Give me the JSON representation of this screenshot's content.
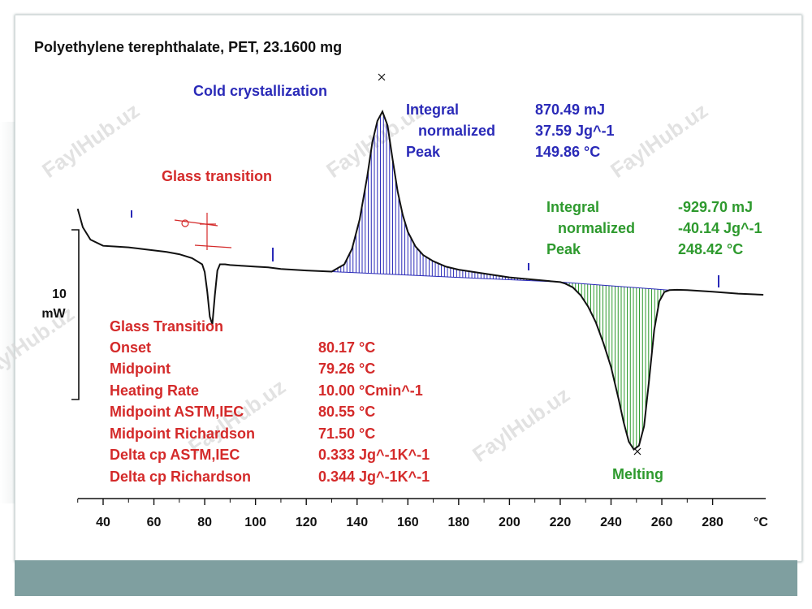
{
  "title": "Polyethylene terephthalate, PET, 23.1600 mg",
  "scale_bar": {
    "value": "10",
    "unit": "mW"
  },
  "x_axis": {
    "unit": "°C",
    "ticks": [
      "40",
      "60",
      "80",
      "100",
      "120",
      "140",
      "160",
      "180",
      "200",
      "220",
      "240",
      "260",
      "280"
    ]
  },
  "watermark": "FaylHub.uz",
  "colors": {
    "glass": "#d42a2a",
    "cold": "#2a2ab8",
    "melt": "#2e9a2e",
    "curve": "#111111"
  },
  "glass_transition_label": "Glass transition",
  "glass_table": {
    "header": "Glass Transition",
    "rows": [
      {
        "label": "Onset",
        "value": "80.17 °C"
      },
      {
        "label": "Midpoint",
        "value": "79.26 °C"
      },
      {
        "label": "Heating Rate",
        "value": "10.00 °Cmin^-1"
      },
      {
        "label": "Midpoint ASTM,IEC",
        "value": "80.55 °C"
      },
      {
        "label": "Midpoint Richardson",
        "value": "71.50 °C"
      },
      {
        "label": "Delta cp ASTM,IEC",
        "value": "0.333 Jg^-1K^-1"
      },
      {
        "label": "Delta cp Richardson",
        "value": "0.344 Jg^-1K^-1"
      }
    ]
  },
  "cold_crystallization": {
    "label": "Cold crystallization",
    "rows": [
      {
        "label": "Integral",
        "value": "870.49 mJ"
      },
      {
        "label": "normalized",
        "value": "37.59 Jg^-1"
      },
      {
        "label": "Peak",
        "value": "149.86 °C"
      }
    ]
  },
  "melting": {
    "label": "Melting",
    "rows": [
      {
        "label": "Integral",
        "value": "-929.70 mJ"
      },
      {
        "label": "normalized",
        "value": "-40.14 Jg^-1"
      },
      {
        "label": "Peak",
        "value": "248.42 °C"
      }
    ]
  },
  "chart_data": {
    "type": "line",
    "xlabel": "°C",
    "xlim": [
      30,
      300
    ],
    "series": [
      {
        "x": [
          30,
          32,
          35,
          40,
          45,
          50,
          55,
          60,
          65,
          70,
          75,
          79,
          80,
          81,
          82,
          83,
          84,
          85,
          86,
          88,
          90,
          95,
          100,
          105,
          110,
          120,
          130,
          135,
          138,
          141,
          144,
          146,
          148,
          150,
          152,
          154,
          156,
          158,
          160,
          163,
          166,
          170,
          175,
          180,
          190,
          200,
          210,
          220,
          222,
          225,
          228,
          231,
          234,
          237,
          240,
          243,
          245,
          247,
          249,
          251,
          253,
          255,
          257,
          259,
          261,
          263,
          266,
          270,
          280,
          290,
          300
        ],
        "y": [
          6.2,
          3.8,
          2.2,
          1.4,
          1.3,
          1.2,
          1.0,
          0.8,
          0.6,
          0.3,
          -0.2,
          -1.0,
          -2.0,
          -4.5,
          -7.8,
          -8.8,
          -5.0,
          -1.8,
          -1.0,
          -1.0,
          -1.1,
          -1.2,
          -1.3,
          -1.4,
          -1.6,
          -1.8,
          -1.95,
          -1.0,
          1.0,
          4.8,
          10.4,
          14.8,
          17.6,
          18.8,
          17.0,
          12.6,
          8.4,
          5.4,
          3.2,
          1.3,
          0.2,
          -0.6,
          -1.3,
          -1.7,
          -2.2,
          -2.7,
          -3.0,
          -3.3,
          -3.5,
          -4.0,
          -5.0,
          -6.5,
          -8.5,
          -11.2,
          -14.3,
          -18.5,
          -21.5,
          -24.0,
          -25.0,
          -24.5,
          -22.0,
          -16.0,
          -9.5,
          -5.8,
          -4.6,
          -4.35,
          -4.3,
          -4.35,
          -4.55,
          -4.8,
          -4.95
        ]
      }
    ]
  }
}
